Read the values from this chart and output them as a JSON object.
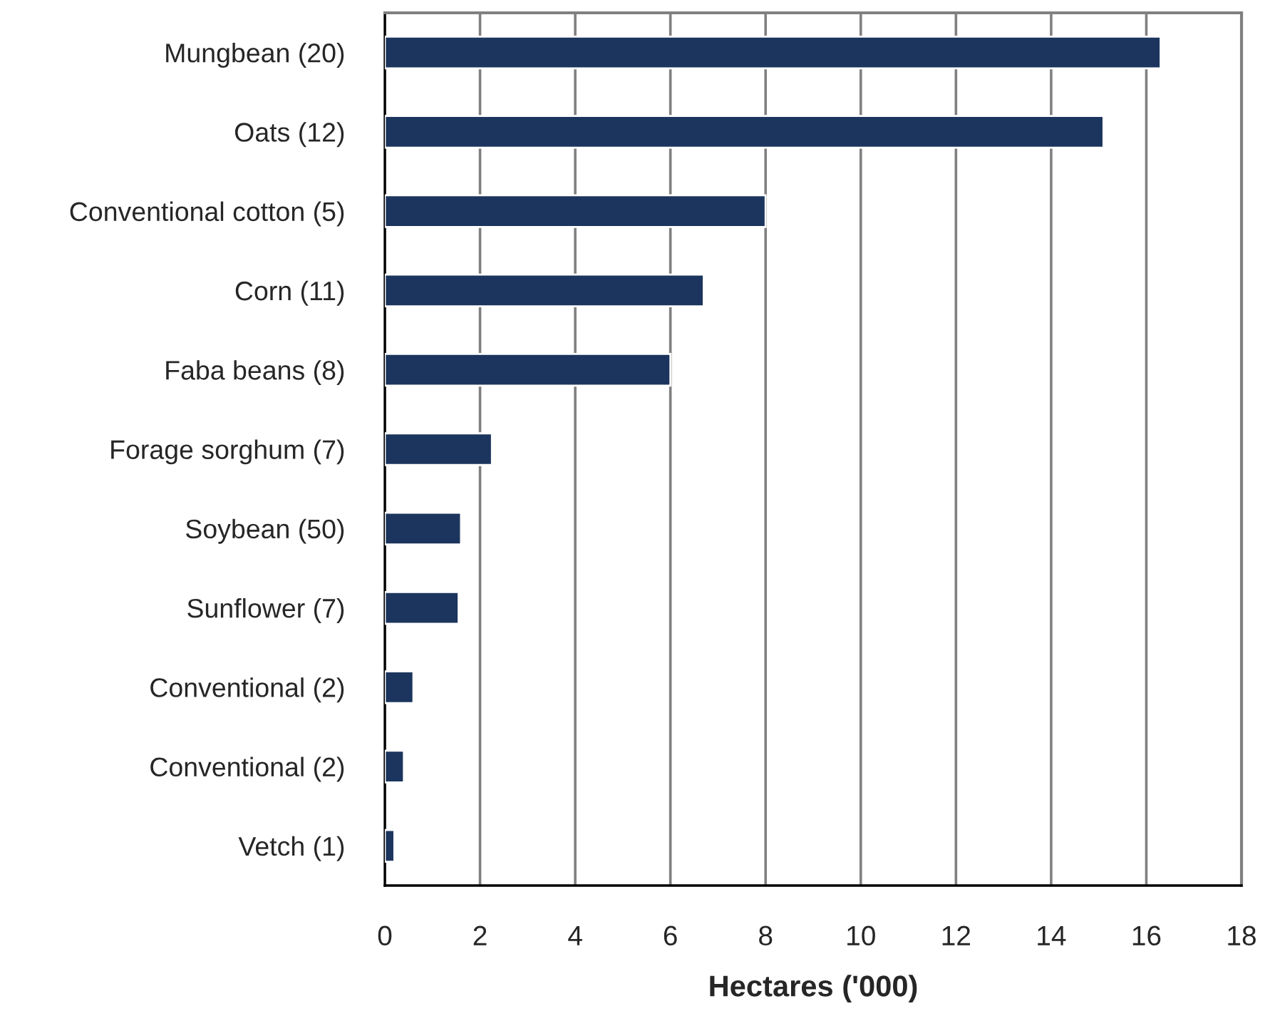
{
  "chart_data": {
    "type": "bar",
    "orientation": "horizontal",
    "xlabel": "Hectares ('000)",
    "categories": [
      "Mungbean (20)",
      "Oats (12)",
      "Conventional cotton (5)",
      "Corn (11)",
      "Faba beans (8)",
      "Forage sorghum (7)",
      "Soybean (50)",
      "Sunflower (7)",
      "Conventional (2)",
      "Conventional (2)",
      "Vetch (1)"
    ],
    "values": [
      16.3,
      15.1,
      8.0,
      6.7,
      6.0,
      2.25,
      1.6,
      1.55,
      0.6,
      0.4,
      0.2
    ],
    "color": "#1c355e",
    "xlim": [
      0,
      18
    ],
    "xticks": [
      0,
      2,
      4,
      6,
      8,
      10,
      12,
      14,
      16,
      18
    ],
    "grid": "x"
  }
}
